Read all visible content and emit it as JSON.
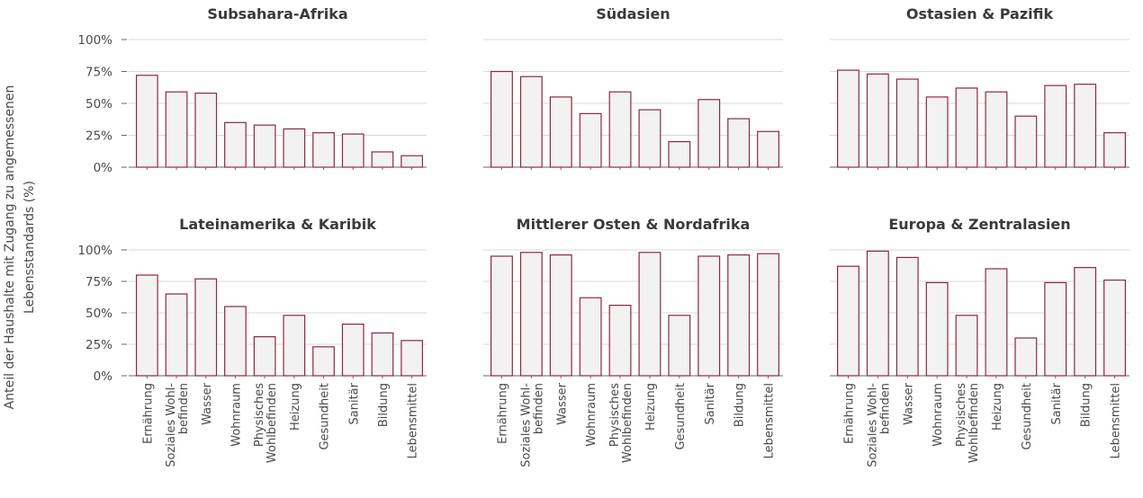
{
  "chart_data": {
    "type": "bar",
    "ylabel_lines": [
      "Anteil der Haushalte mit Zugang zu angemessenen",
      "Lebensstandards (%)"
    ],
    "ylim": [
      0,
      100
    ],
    "y_ticks": [
      "0%",
      "25%",
      "50%",
      "75%",
      "100%"
    ],
    "categories": [
      "Ernährung",
      "Soziales Wohl-\nbefinden",
      "Wasser",
      "Wohnraum",
      "Physisches\nWohlbefinden",
      "Heizung",
      "Gesundheit",
      "Sanitär",
      "Bildung",
      "Lebensmittel"
    ],
    "grid": true,
    "colors": {
      "bar_fill": "#f2f2f2",
      "bar_stroke": "#8b2a3e",
      "grid": "#d9d9d9",
      "axis": "#666666"
    },
    "panels": [
      {
        "title": "Subsahara-Afrika",
        "values": [
          72,
          59,
          58,
          35,
          33,
          30,
          27,
          26,
          12,
          9
        ]
      },
      {
        "title": "Südasien",
        "values": [
          75,
          71,
          55,
          42,
          59,
          45,
          20,
          53,
          38,
          28
        ]
      },
      {
        "title": "Ostasien & Pazifik",
        "values": [
          76,
          73,
          69,
          55,
          62,
          59,
          40,
          64,
          65,
          27
        ]
      },
      {
        "title": "Lateinamerika & Karibik",
        "values": [
          80,
          65,
          77,
          55,
          31,
          48,
          23,
          41,
          34,
          28
        ]
      },
      {
        "title": "Mittlerer Osten & Nordafrika",
        "values": [
          95,
          98,
          96,
          62,
          56,
          98,
          48,
          95,
          96,
          97
        ]
      },
      {
        "title": "Europa & Zentralasien",
        "values": [
          87,
          99,
          94,
          74,
          48,
          85,
          30,
          74,
          86,
          76
        ]
      }
    ]
  }
}
